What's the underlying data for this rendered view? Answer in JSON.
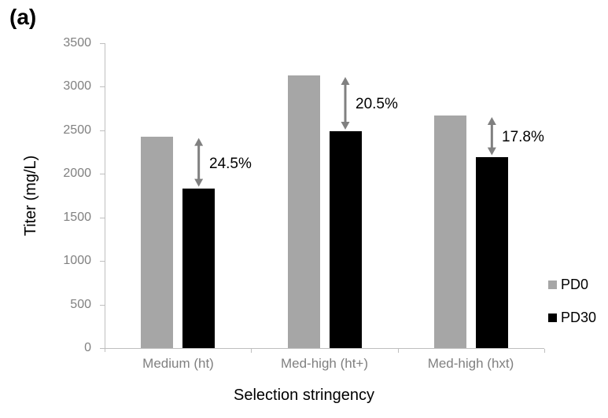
{
  "panel_label": "(a)",
  "colors": {
    "pd0_bar": "#a6a6a6",
    "pd30_bar": "#000000",
    "arrow": "#808080",
    "axis_line": "#bfbfbf",
    "tick_text": "#808080",
    "title_text": "#000000"
  },
  "chart_data": {
    "type": "bar",
    "title": "",
    "xlabel": "Selection stringency",
    "ylabel": "Titer (mg/L)",
    "categories": [
      "Medium (ht)",
      "Med-high (ht+)",
      "Med-high (hxt)"
    ],
    "series": [
      {
        "name": "PD0",
        "color": "#a6a6a6",
        "values": [
          2430,
          3130,
          2670
        ]
      },
      {
        "name": "PD30",
        "color": "#000000",
        "values": [
          1835,
          2490,
          2195
        ]
      }
    ],
    "annotations": [
      {
        "label": "24.5%",
        "category_index": 0
      },
      {
        "label": "20.5%",
        "category_index": 1
      },
      {
        "label": "17.8%",
        "category_index": 2
      }
    ],
    "ylim": [
      0,
      3500
    ],
    "ytick_step": 500,
    "yticks": [
      "0",
      "500",
      "1000",
      "1500",
      "2000",
      "2500",
      "3000",
      "3500"
    ],
    "legend_position": "right",
    "grid": false
  }
}
